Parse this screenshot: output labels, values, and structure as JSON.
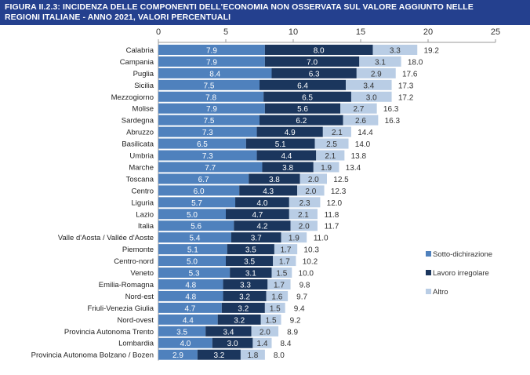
{
  "chart_data": {
    "type": "bar",
    "orientation": "horizontal",
    "stacked": true,
    "title": "FIGURA II.2.3: INCIDENZA DELLE COMPONENTI DELL'ECONOMIA NON OSSERVATA SUL VALORE AGGIUNTO NELLE REGIONI ITALIANE - ANNO 2021, VALORI PERCENTUALI",
    "title_lines": [
      "FIGURA II.2.3: INCIDENZA DELLE COMPONENTI DELL'ECONOMIA NON OSSERVATA SUL VALORE AGGIUNTO NELLE",
      "REGIONI ITALIANE - ANNO 2021, VALORI PERCENTUALI"
    ],
    "xlim": [
      0,
      25
    ],
    "xticks": [
      0,
      5,
      10,
      15,
      20,
      25
    ],
    "grid": false,
    "legend_position": "right",
    "categories": [
      "Calabria",
      "Campania",
      "Puglia",
      "Sicilia",
      "Mezzogiorno",
      "Molise",
      "Sardegna",
      "Abruzzo",
      "Basilicata",
      "Umbria",
      "Marche",
      "Toscana",
      "Centro",
      "Liguria",
      "Lazio",
      "Italia",
      "Valle d'Aosta / Vallée d'Aoste",
      "Piemonte",
      "Centro-nord",
      "Veneto",
      "Emilia-Romagna",
      "Nord-est",
      "Friuli-Venezia Giulia",
      "Nord-ovest",
      "Provincia Autonoma Trento",
      "Lombardia",
      "Provincia Autonoma Bolzano / Bozen"
    ],
    "series": [
      {
        "name": "Sotto-dichirazione",
        "color": "#4f81bd",
        "values": [
          7.9,
          7.9,
          8.4,
          7.5,
          7.8,
          7.9,
          7.5,
          7.3,
          6.5,
          7.3,
          7.7,
          6.7,
          6.0,
          5.7,
          5.0,
          5.6,
          5.4,
          5.1,
          5.0,
          5.3,
          4.8,
          4.8,
          4.7,
          4.4,
          3.5,
          4.0,
          2.9
        ]
      },
      {
        "name": "Lavoro irregolare",
        "color": "#1b365d",
        "values": [
          8.0,
          7.0,
          6.3,
          6.4,
          6.5,
          5.6,
          6.2,
          4.9,
          5.1,
          4.4,
          3.8,
          3.8,
          4.3,
          4.0,
          4.7,
          4.2,
          3.7,
          3.5,
          3.5,
          3.1,
          3.3,
          3.2,
          3.2,
          3.2,
          3.4,
          3.0,
          3.2
        ]
      },
      {
        "name": "Altro",
        "color": "#b9cde5",
        "values": [
          3.3,
          3.1,
          2.9,
          3.4,
          3.0,
          2.7,
          2.6,
          2.1,
          2.5,
          2.1,
          1.9,
          2.0,
          2.0,
          2.3,
          2.1,
          2.0,
          1.9,
          1.7,
          1.7,
          1.5,
          1.7,
          1.6,
          1.5,
          1.5,
          2.0,
          1.4,
          1.8
        ]
      }
    ],
    "totals": [
      "19.2",
      "18.0",
      "17.6",
      "17.3",
      "17.2",
      "16.3",
      "16.3",
      "14.4",
      "14.0",
      "13.8",
      "13.4",
      "12.5",
      "12.3",
      "12.0",
      "11.8",
      "11.7",
      "11.0",
      "10.3",
      "10.2",
      "10.0",
      "9.8",
      "9.7",
      "9.4",
      "9.2",
      "8.9",
      "8.4",
      "8.0"
    ]
  }
}
